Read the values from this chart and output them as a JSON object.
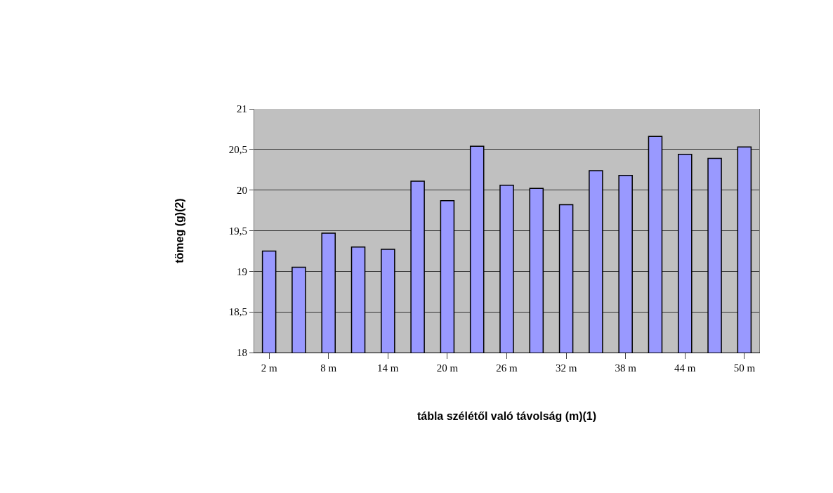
{
  "chart_data": {
    "type": "bar",
    "xlabel": "tábla szélétől való távolság (m)(1)",
    "ylabel": "tömeg (g)(2)",
    "categories": [
      "2 m",
      null,
      "8 m",
      null,
      "14 m",
      null,
      "20 m",
      null,
      "26 m",
      null,
      "32 m",
      null,
      "38 m",
      null,
      "44 m",
      null,
      "50 m"
    ],
    "values": [
      19.25,
      19.05,
      19.47,
      19.3,
      19.27,
      20.11,
      19.87,
      20.54,
      20.06,
      20.02,
      19.82,
      20.24,
      20.18,
      20.66,
      20.44,
      20.39,
      20.53
    ],
    "color": "#9999ff",
    "ylim": [
      18,
      21
    ],
    "yticks": [
      {
        "value": 18,
        "label": "18"
      },
      {
        "value": 18.5,
        "label": "18,5"
      },
      {
        "value": 19,
        "label": "19"
      },
      {
        "value": 19.5,
        "label": "19,5"
      },
      {
        "value": 20,
        "label": "20"
      },
      {
        "value": 20.5,
        "label": "20,5"
      },
      {
        "value": 21,
        "label": "21"
      }
    ],
    "grid": "y"
  }
}
